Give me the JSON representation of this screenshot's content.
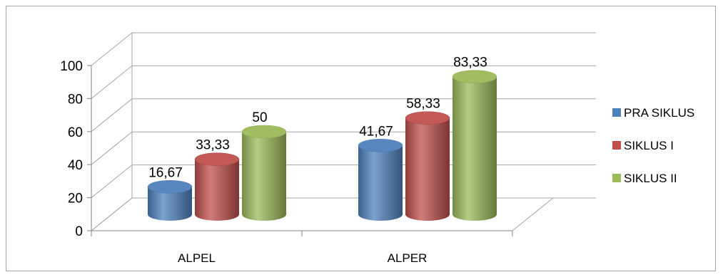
{
  "chart_data": {
    "type": "bar",
    "style": "3d-cylinder",
    "categories": [
      "ALPEL",
      "ALPER"
    ],
    "series": [
      {
        "name": "PRA SIKLUS",
        "values": [
          16.67,
          41.67
        ],
        "labels": [
          "16,67",
          "41,67"
        ],
        "color": "#4f81bd"
      },
      {
        "name": "SIKLUS I",
        "values": [
          33.33,
          58.33
        ],
        "labels": [
          "33,33",
          "58,33"
        ],
        "color": "#c0504d"
      },
      {
        "name": "SIKLUS II",
        "values": [
          50,
          83.33
        ],
        "labels": [
          "50",
          "83,33"
        ],
        "color": "#9bbb59"
      }
    ],
    "ylim": [
      0,
      100
    ],
    "yticks": [
      0,
      20,
      40,
      60,
      80,
      100
    ],
    "ytick_labels": [
      "0",
      "20",
      "40",
      "60",
      "80",
      "100"
    ],
    "title": "",
    "xlabel": "",
    "ylabel": "",
    "grid": true,
    "legend": "right"
  }
}
